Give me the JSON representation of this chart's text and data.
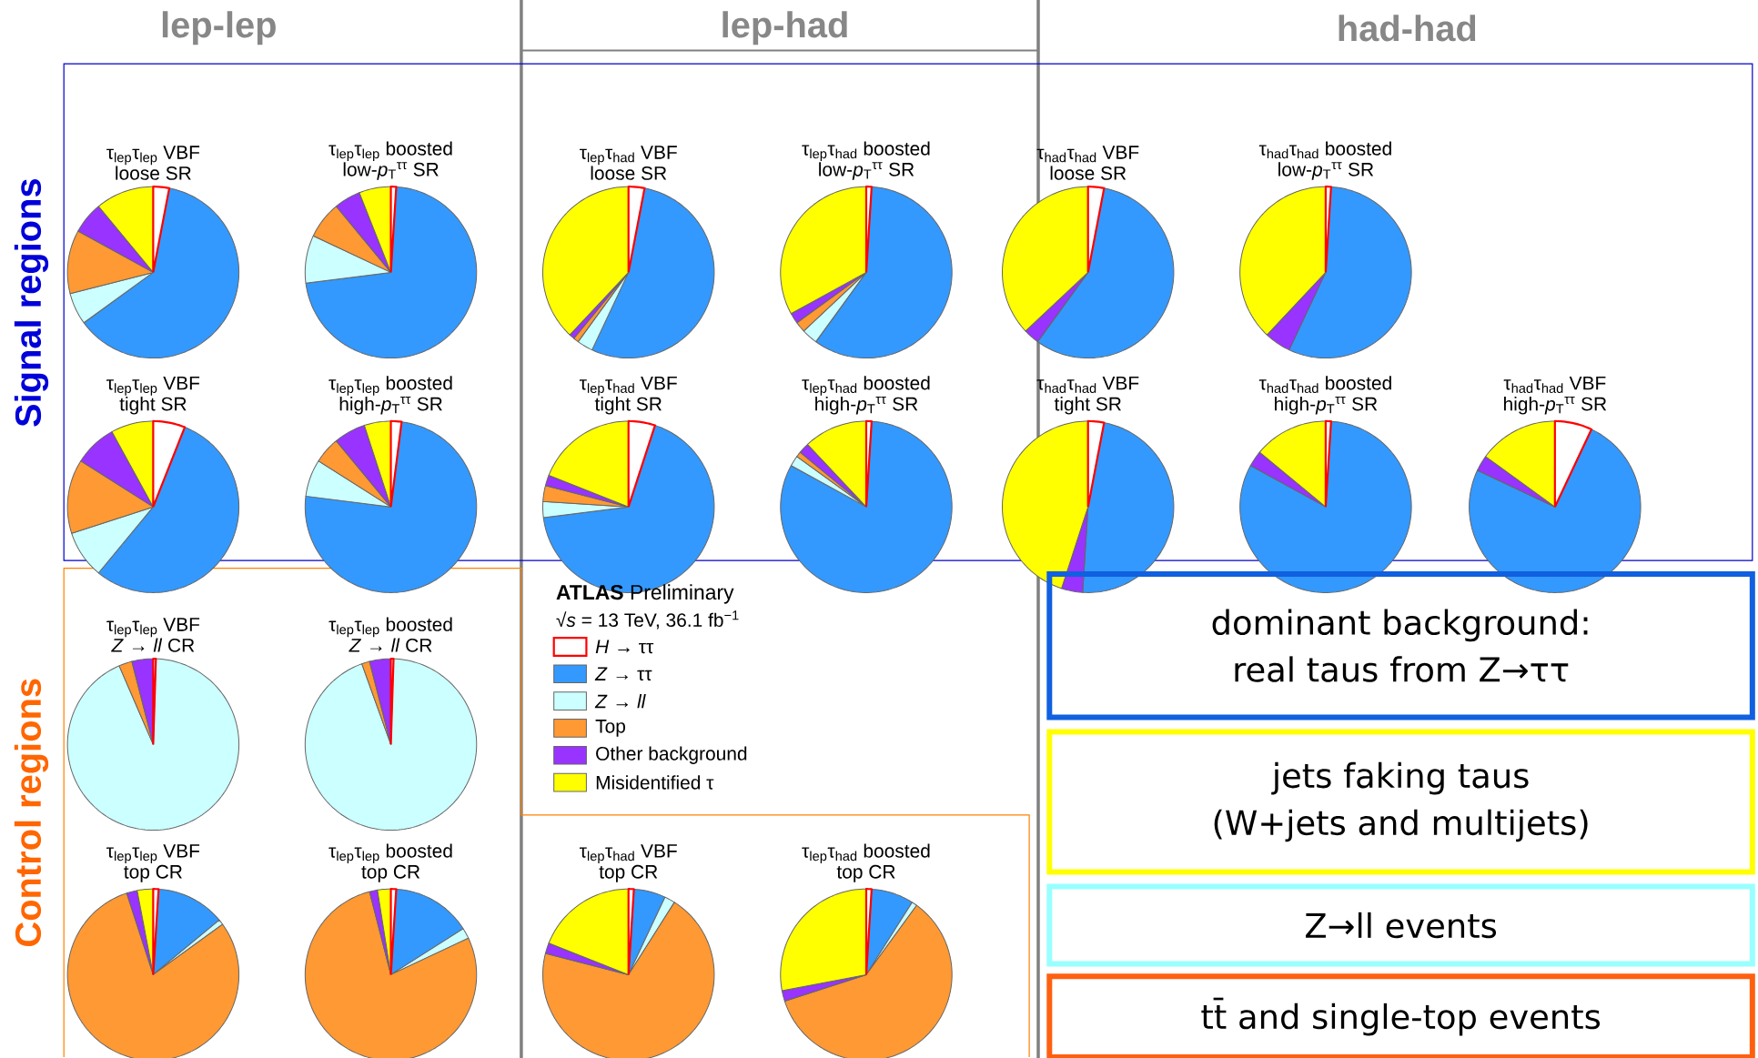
{
  "chart_data": [
    {
      "type": "pie",
      "title": "τ$_{lep}$τ$_{lep}$ VBF",
      "subtitle": "loose SR",
      "categories": [
        null,
        null,
        null,
        null,
        null,
        null
      ],
      "values": [
        3,
        62,
        6,
        12,
        6,
        11
      ],
      "colors": [
        "#ff0000",
        "#3399ff",
        "#ccffff",
        "#ff9933",
        "#9933ff",
        "#ffff00"
      ]
    },
    {
      "type": "pie",
      "title": "τ$_{lep}$τ$_{lep}$ boosted",
      "subtitle": "low-*p*$_{T}$$^{ττ}$ SR",
      "categories": [
        null,
        null,
        null,
        null,
        null,
        null
      ],
      "values": [
        1,
        72,
        9,
        7,
        5,
        6
      ],
      "colors": [
        "#ff0000",
        "#3399ff",
        "#ccffff",
        "#ff9933",
        "#9933ff",
        "#ffff00"
      ]
    },
    {
      "type": "pie",
      "title": "τ$_{lep}$τ$_{had}$ VBF",
      "subtitle": "loose SR",
      "categories": [
        null,
        null,
        null,
        null,
        null,
        null
      ],
      "values": [
        3,
        54,
        3,
        1,
        1,
        38
      ],
      "colors": [
        "#ff0000",
        "#3399ff",
        "#ccffff",
        "#ff9933",
        "#9933ff",
        "#ffff00"
      ]
    },
    {
      "type": "pie",
      "title": "τ$_{lep}$τ$_{had}$ boosted",
      "subtitle": "low-*p*$_{T}$$^{ττ}$ SR",
      "categories": [
        null,
        null,
        null,
        null,
        null,
        null
      ],
      "values": [
        1,
        59,
        3,
        2,
        2,
        33
      ],
      "colors": [
        "#ff0000",
        "#3399ff",
        "#ccffff",
        "#ff9933",
        "#9933ff",
        "#ffff00"
      ]
    },
    {
      "type": "pie",
      "title": "τ$_{had}$τ$_{had}$ VBF",
      "subtitle": "loose SR",
      "categories": [
        null,
        null,
        null,
        null,
        null,
        null
      ],
      "values": [
        3,
        57,
        0,
        0,
        3,
        37
      ],
      "colors": [
        "#ff0000",
        "#3399ff",
        "#ccffff",
        "#ff9933",
        "#9933ff",
        "#ffff00"
      ]
    },
    {
      "type": "pie",
      "title": "τ$_{had}$τ$_{had}$ boosted",
      "subtitle": "low-*p*$_{T}$$^{ττ}$ SR",
      "categories": [
        null,
        null,
        null,
        null,
        null,
        null
      ],
      "values": [
        1,
        56,
        0,
        0,
        5,
        38
      ],
      "colors": [
        "#ff0000",
        "#3399ff",
        "#ccffff",
        "#ff9933",
        "#9933ff",
        "#ffff00"
      ]
    },
    {
      "type": "pie",
      "title": "τ$_{lep}$τ$_{lep}$ VBF",
      "subtitle": "tight SR",
      "categories": [
        null,
        null,
        null,
        null,
        null,
        null
      ],
      "values": [
        6,
        55,
        9,
        14,
        8,
        8
      ],
      "colors": [
        "#ff0000",
        "#3399ff",
        "#ccffff",
        "#ff9933",
        "#9933ff",
        "#ffff00"
      ]
    },
    {
      "type": "pie",
      "title": "τ$_{lep}$τ$_{lep}$ boosted",
      "subtitle": "high-*p*$_{T}$$^{ττ}$ SR",
      "categories": [
        null,
        null,
        null,
        null,
        null,
        null
      ],
      "values": [
        2,
        75,
        7,
        5,
        6,
        5
      ],
      "colors": [
        "#ff0000",
        "#3399ff",
        "#ccffff",
        "#ff9933",
        "#9933ff",
        "#ffff00"
      ]
    },
    {
      "type": "pie",
      "title": "τ$_{lep}$τ$_{had}$ VBF",
      "subtitle": "tight SR",
      "categories": [
        null,
        null,
        null,
        null,
        null,
        null
      ],
      "values": [
        5,
        68,
        3,
        3,
        2,
        19
      ],
      "colors": [
        "#ff0000",
        "#3399ff",
        "#ccffff",
        "#ff9933",
        "#9933ff",
        "#ffff00"
      ]
    },
    {
      "type": "pie",
      "title": "τ$_{lep}$τ$_{had}$ boosted",
      "subtitle": "high-*p*$_{T}$$^{ττ}$ SR",
      "categories": [
        null,
        null,
        null,
        null,
        null,
        null
      ],
      "values": [
        1,
        82,
        2,
        1,
        2,
        12
      ],
      "colors": [
        "#ff0000",
        "#3399ff",
        "#ccffff",
        "#ff9933",
        "#9933ff",
        "#ffff00"
      ]
    },
    {
      "type": "pie",
      "title": "τ$_{had}$τ$_{had}$ VBF",
      "subtitle": "tight SR",
      "categories": [
        null,
        null,
        null,
        null,
        null,
        null
      ],
      "values": [
        3,
        48,
        0,
        0,
        4,
        45
      ],
      "colors": [
        "#ff0000",
        "#3399ff",
        "#ccffff",
        "#ff9933",
        "#9933ff",
        "#ffff00"
      ]
    },
    {
      "type": "pie",
      "title": "τ$_{had}$τ$_{had}$ boosted",
      "subtitle": "high-*p*$_{T}$$^{ττ}$ SR",
      "categories": [
        null,
        null,
        null,
        null,
        null,
        null
      ],
      "values": [
        1,
        82,
        0,
        0,
        3,
        14
      ],
      "colors": [
        "#ff0000",
        "#3399ff",
        "#ccffff",
        "#ff9933",
        "#9933ff",
        "#ffff00"
      ]
    },
    {
      "type": "pie",
      "title": "τ$_{had}$τ$_{had}$ VBF",
      "subtitle": "high-*p*$_{T}$$^{ττ}$ SR",
      "categories": [
        null,
        null,
        null,
        null,
        null,
        null
      ],
      "values": [
        7,
        75,
        0,
        0,
        3,
        15
      ],
      "colors": [
        "#ff0000",
        "#3399ff",
        "#ccffff",
        "#ff9933",
        "#9933ff",
        "#ffff00"
      ]
    },
    {
      "type": "pie",
      "title": "τ$_{lep}$τ$_{lep}$ VBF",
      "subtitle": "*Z* → *ll* CR",
      "categories": [
        null,
        null,
        null,
        null,
        null,
        null
      ],
      "values": [
        0.5,
        0,
        93,
        2.5,
        4,
        0
      ],
      "colors": [
        "#ff0000",
        "#3399ff",
        "#ccffff",
        "#ff9933",
        "#9933ff",
        "#ffff00"
      ]
    },
    {
      "type": "pie",
      "title": "τ$_{lep}$τ$_{lep}$ boosted",
      "subtitle": "*Z* → *ll* CR",
      "categories": [
        null,
        null,
        null,
        null,
        null,
        null
      ],
      "values": [
        0.5,
        0,
        94,
        1.5,
        4,
        0
      ],
      "colors": [
        "#ff0000",
        "#3399ff",
        "#ccffff",
        "#ff9933",
        "#9933ff",
        "#ffff00"
      ]
    },
    {
      "type": "pie",
      "title": "τ$_{lep}$τ$_{lep}$ VBF",
      "subtitle": "top CR",
      "categories": [
        null,
        null,
        null,
        null,
        null,
        null
      ],
      "values": [
        1,
        13,
        1,
        80,
        2,
        3
      ],
      "colors": [
        "#ff0000",
        "#3399ff",
        "#ccffff",
        "#ff9933",
        "#9933ff",
        "#ffff00"
      ]
    },
    {
      "type": "pie",
      "title": "τ$_{lep}$τ$_{lep}$ boosted",
      "subtitle": "top CR",
      "categories": [
        null,
        null,
        null,
        null,
        null,
        null
      ],
      "values": [
        1,
        15,
        2,
        78,
        1.5,
        2.5
      ],
      "colors": [
        "#ff0000",
        "#3399ff",
        "#ccffff",
        "#ff9933",
        "#9933ff",
        "#ffff00"
      ]
    },
    {
      "type": "pie",
      "title": "τ$_{lep}$τ$_{had}$ VBF",
      "subtitle": "top CR",
      "categories": [
        null,
        null,
        null,
        null,
        null,
        null
      ],
      "values": [
        1,
        6,
        2,
        70,
        2,
        19
      ],
      "colors": [
        "#ff0000",
        "#3399ff",
        "#ccffff",
        "#ff9933",
        "#9933ff",
        "#ffff00"
      ]
    },
    {
      "type": "pie",
      "title": "τ$_{lep}$τ$_{had}$ boosted",
      "subtitle": "top CR",
      "categories": [
        null,
        null,
        null,
        null,
        null,
        null
      ],
      "values": [
        1,
        8,
        1,
        60,
        2,
        28
      ],
      "colors": [
        "#ff0000",
        "#3399ff",
        "#ccffff",
        "#ff9933",
        "#9933ff",
        "#ffff00"
      ]
    },
    {
      "type": "other",
      "title": "**ATLAS** Preliminary",
      "subtitle": "√*s* = 13 TeV, 36.1 fb$^{−1}$",
      "categories": [
        "*H* → ττ",
        "*Z* → ττ",
        "*Z* → *ll*",
        "Top",
        "Other background",
        "Misidentified τ"
      ],
      "colors": [
        "#ff0000",
        "#3399ff",
        "#ccffff",
        "#ff9933",
        "#9933ff",
        "#ffff00"
      ]
    },
    {
      "type": "other",
      "title": "dominant background:",
      "subtitle": "real taus from Z→ττ",
      "color": "#1060e0"
    },
    {
      "type": "other",
      "title": "jets faking taus",
      "subtitle": "(W+jets and multijets)",
      "color": "#ffff00"
    },
    {
      "type": "other",
      "title": "Z→ll events",
      "color": "#99ffff"
    },
    {
      "type": "other",
      "title": "tt̄ and single-top events",
      "color": "#ff6010"
    },
    {
      "type": "other",
      "annotations": [
        "lep-lep",
        "lep-had",
        "had-had",
        "Signal regions",
        "Control regions"
      ]
    }
  ]
}
